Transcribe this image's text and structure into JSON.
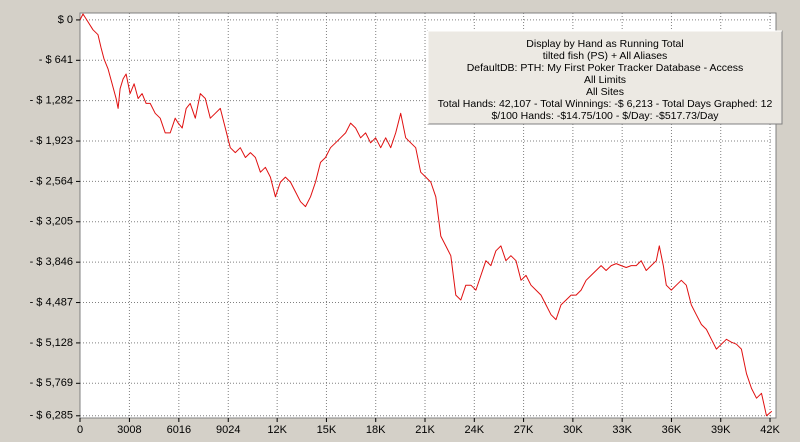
{
  "chart_data": {
    "type": "line",
    "color": "#e01010",
    "grid": true,
    "annotations": [
      "Display by Hand as Running Total",
      "tilted fish (PS) + All Aliases",
      "DefaultDB: PTH: My First Poker Tracker Database - Access",
      "All Limits",
      "All Sites",
      "Total Hands: 42,107 - Total Winnings: -$ 6,213 - Total Days Graphed: 12",
      "$/100 Hands: -$14.75/100 - $/Day: -$517.73/Day"
    ],
    "xlim": [
      0,
      42120
    ],
    "ylim": [
      -6320,
      110
    ],
    "xticks": [
      0,
      3008,
      6016,
      9024,
      {
        "value": 12000,
        "label": "12K"
      },
      {
        "value": 15000,
        "label": "15K"
      },
      {
        "value": 18000,
        "label": "18K"
      },
      {
        "value": 21000,
        "label": "21K"
      },
      {
        "value": 24000,
        "label": "24K"
      },
      {
        "value": 27000,
        "label": "27K"
      },
      {
        "value": 30000,
        "label": "30K"
      },
      {
        "value": 33000,
        "label": "33K"
      },
      {
        "value": 36000,
        "label": "36K"
      },
      {
        "value": 39000,
        "label": "39K"
      },
      {
        "value": 42000,
        "label": "42K"
      }
    ],
    "yticks": [
      {
        "value": 0,
        "label": "$ 0"
      },
      {
        "value": -641,
        "label": "- $ 641"
      },
      {
        "value": -1282,
        "label": "- $ 1,282"
      },
      {
        "value": -1923,
        "label": "- $ 1,923"
      },
      {
        "value": -2564,
        "label": "- $ 2,564"
      },
      {
        "value": -3205,
        "label": "- $ 3,205"
      },
      {
        "value": -3846,
        "label": "- $ 3,846"
      },
      {
        "value": -4487,
        "label": "- $ 4,487"
      },
      {
        "value": -5128,
        "label": "- $ 5,128"
      },
      {
        "value": -5769,
        "label": "- $ 5,769"
      },
      {
        "value": -6285,
        "label": "- $ 6,285"
      }
    ],
    "x": [
      0,
      183,
      488,
      793,
      1098,
      1281,
      1464,
      1708,
      1952,
      2196,
      2318,
      2440,
      2623,
      2806,
      3050,
      3294,
      3538,
      3782,
      4026,
      4270,
      4575,
      4880,
      5185,
      5490,
      5795,
      5978,
      6222,
      6466,
      6710,
      7015,
      7320,
      7625,
      7930,
      8235,
      8540,
      8845,
      9150,
      9455,
      9760,
      10065,
      10370,
      10675,
      10980,
      11285,
      11590,
      11895,
      12200,
      12505,
      12810,
      13115,
      13420,
      13725,
      14030,
      14335,
      14640,
      14945,
      15250,
      15555,
      15860,
      16165,
      16470,
      16775,
      17080,
      17385,
      17690,
      17995,
      18300,
      18605,
      18910,
      19215,
      19520,
      19825,
      20130,
      20435,
      20740,
      21045,
      21350,
      21655,
      21960,
      22265,
      22570,
      22875,
      23180,
      23485,
      23790,
      24095,
      24400,
      24705,
      25010,
      25315,
      25620,
      25925,
      26230,
      26535,
      26840,
      27145,
      27450,
      27755,
      28060,
      28365,
      28670,
      28975,
      29280,
      29585,
      29890,
      30195,
      30500,
      30805,
      31110,
      31415,
      31720,
      32025,
      32330,
      32635,
      32940,
      33245,
      33550,
      33855,
      34160,
      34465,
      34770,
      35075,
      35258,
      35502,
      35685,
      35990,
      36295,
      36600,
      36905,
      37210,
      37515,
      37820,
      38125,
      38430,
      38735,
      39040,
      39345,
      39650,
      39955,
      40260,
      40565,
      40870,
      41175,
      41480,
      41785,
      42107
    ],
    "values": [
      0,
      94,
      -31,
      -156,
      -234,
      -437,
      -624,
      -780,
      -1014,
      -1248,
      -1404,
      -1092,
      -936,
      -858,
      -1170,
      -1014,
      -1248,
      -1170,
      -1326,
      -1326,
      -1482,
      -1560,
      -1794,
      -1794,
      -1560,
      -1638,
      -1716,
      -1404,
      -1326,
      -1560,
      -1170,
      -1248,
      -1560,
      -1482,
      -1404,
      -1716,
      -2028,
      -2106,
      -2028,
      -2184,
      -2106,
      -2184,
      -2418,
      -2340,
      -2496,
      -2808,
      -2574,
      -2496,
      -2574,
      -2730,
      -2886,
      -2964,
      -2808,
      -2574,
      -2262,
      -2184,
      -2028,
      -1950,
      -1872,
      -1794,
      -1638,
      -1716,
      -1872,
      -1794,
      -1950,
      -1872,
      -2028,
      -1872,
      -2028,
      -1794,
      -1482,
      -1872,
      -1950,
      -2028,
      -2418,
      -2496,
      -2574,
      -2808,
      -3432,
      -3588,
      -3744,
      -4368,
      -4446,
      -4212,
      -4212,
      -4290,
      -4056,
      -3822,
      -3900,
      -3666,
      -3588,
      -3822,
      -3744,
      -3822,
      -4134,
      -4056,
      -4212,
      -4290,
      -4368,
      -4524,
      -4680,
      -4758,
      -4524,
      -4446,
      -4368,
      -4368,
      -4290,
      -4134,
      -4056,
      -3978,
      -3900,
      -3978,
      -3900,
      -3869,
      -3900,
      -3931,
      -3900,
      -3900,
      -3822,
      -3978,
      -3900,
      -3822,
      -3588,
      -3900,
      -4212,
      -4290,
      -4212,
      -4134,
      -4212,
      -4524,
      -4680,
      -4836,
      -4914,
      -5070,
      -5226,
      -5148,
      -5070,
      -5117,
      -5148,
      -5226,
      -5616,
      -5850,
      -6006,
      -5928,
      -6285,
      -6213
    ]
  }
}
